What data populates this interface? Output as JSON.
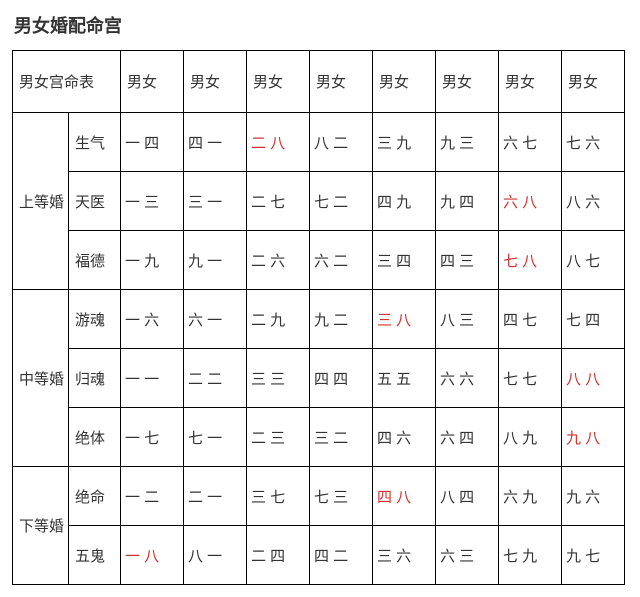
{
  "title": "男女婚配命宫",
  "header_title": "男女宫命表",
  "column_header_label": "男女",
  "column_count": 8,
  "colors": {
    "text": "#333333",
    "highlight": "#cc3333",
    "border": "#000000",
    "background": "#ffffff"
  },
  "groups": [
    {
      "name": "上等婚",
      "rows": [
        {
          "sub": "生气",
          "cells": [
            {
              "v": "一 四"
            },
            {
              "v": "四 一"
            },
            {
              "v": "二 八",
              "hl": true
            },
            {
              "v": "八 二"
            },
            {
              "v": "三 九"
            },
            {
              "v": "九 三"
            },
            {
              "v": "六 七"
            },
            {
              "v": "七 六"
            }
          ]
        },
        {
          "sub": "天医",
          "cells": [
            {
              "v": "一 三"
            },
            {
              "v": "三 一"
            },
            {
              "v": "二 七"
            },
            {
              "v": "七 二"
            },
            {
              "v": "四 九"
            },
            {
              "v": "九 四"
            },
            {
              "v": "六 八",
              "hl": true
            },
            {
              "v": "八 六"
            }
          ]
        },
        {
          "sub": "福德",
          "cells": [
            {
              "v": "一 九"
            },
            {
              "v": "九 一"
            },
            {
              "v": "二 六"
            },
            {
              "v": "六 二"
            },
            {
              "v": "三 四"
            },
            {
              "v": "四 三"
            },
            {
              "v": "七 八",
              "hl": true
            },
            {
              "v": "八 七"
            }
          ]
        }
      ]
    },
    {
      "name": "中等婚",
      "rows": [
        {
          "sub": "游魂",
          "cells": [
            {
              "v": "一 六"
            },
            {
              "v": "六 一"
            },
            {
              "v": "二 九"
            },
            {
              "v": "九 二"
            },
            {
              "v": "三 八",
              "hl": true
            },
            {
              "v": "八 三"
            },
            {
              "v": "四 七"
            },
            {
              "v": "七 四"
            }
          ]
        },
        {
          "sub": "归魂",
          "cells": [
            {
              "v": "一 一"
            },
            {
              "v": "二 二"
            },
            {
              "v": "三 三"
            },
            {
              "v": "四 四"
            },
            {
              "v": "五 五"
            },
            {
              "v": "六 六"
            },
            {
              "v": "七 七"
            },
            {
              "v": "八 八",
              "hl": true
            }
          ]
        },
        {
          "sub": "绝体",
          "cells": [
            {
              "v": "一 七"
            },
            {
              "v": "七 一"
            },
            {
              "v": "二 三"
            },
            {
              "v": "三 二"
            },
            {
              "v": "四 六"
            },
            {
              "v": "六 四"
            },
            {
              "v": "八 九"
            },
            {
              "v": "九 八",
              "hl": true
            }
          ]
        }
      ]
    },
    {
      "name": "下等婚",
      "rows": [
        {
          "sub": "绝命",
          "cells": [
            {
              "v": "一 二"
            },
            {
              "v": "二 一"
            },
            {
              "v": "三 七"
            },
            {
              "v": "七 三"
            },
            {
              "v": "四 八",
              "hl": true
            },
            {
              "v": "八 四"
            },
            {
              "v": "六 九"
            },
            {
              "v": "九 六"
            }
          ]
        },
        {
          "sub": "五鬼",
          "cells": [
            {
              "v": "一 八",
              "hl": true
            },
            {
              "v": "八 一"
            },
            {
              "v": "二 四"
            },
            {
              "v": "四 二"
            },
            {
              "v": "三 六"
            },
            {
              "v": "六 三"
            },
            {
              "v": "七 九"
            },
            {
              "v": "九 七"
            }
          ]
        }
      ]
    }
  ]
}
